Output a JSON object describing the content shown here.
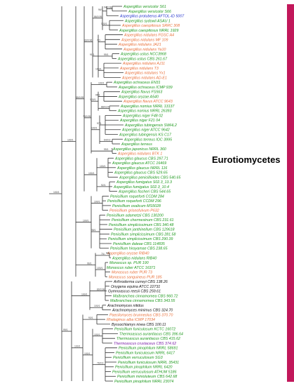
{
  "clade_label": "Eurotiomycetes",
  "colors": {
    "green": "#1f9a1f",
    "orange": "#e8703a",
    "blue": "#2233cc",
    "black": "#111111",
    "purple": "#7a1fa8",
    "bar": "#c2185b",
    "branch": "#333333"
  },
  "taxa": [
    {
      "label": "Aspergillus versicolor S61",
      "color": "green"
    },
    {
      "label": "Aspergillus versicolor S66",
      "color": "green"
    },
    {
      "label": "Aspergillus protuberus AFTOL-ID 5007",
      "color": "blue"
    },
    {
      "label": "Aspergillus sydowii ASAU 1",
      "color": "green"
    },
    {
      "label": "Aspergillus caespitosus SRRC 308",
      "color": "orange"
    },
    {
      "label": "Aspergillus caespitosus NRRL 1929",
      "color": "green"
    },
    {
      "label": "Aspergillus nidulans FGSC A4",
      "color": "orange"
    },
    {
      "label": "Aspergillus nidulans MF 109",
      "color": "orange"
    },
    {
      "label": "Aspergillus nidulans JA21",
      "color": "orange"
    },
    {
      "label": "Aspergillus nidulans Ya10",
      "color": "orange"
    },
    {
      "label": "Aspergillus ustus NCC3968",
      "color": "green"
    },
    {
      "label": "Aspergillus ustus CBS 261.67",
      "color": "green"
    },
    {
      "label": "Aspergillus nidulans AJ11",
      "color": "orange"
    },
    {
      "label": "Aspergillus nidulans T3",
      "color": "orange"
    },
    {
      "label": "Aspergillus nidulans Yx1",
      "color": "orange"
    },
    {
      "label": "Aspergillus nidulans AD-E1",
      "color": "orange"
    },
    {
      "label": "Aspergillus ochraceus EN31",
      "color": "green"
    },
    {
      "label": "Aspergillus ochraceus ICMP 939",
      "color": "green"
    },
    {
      "label": "Aspergillus flavus FS563",
      "color": "green"
    },
    {
      "label": "Aspergillus oryzae A540",
      "color": "green"
    },
    {
      "label": "Aspergillus flavus ATCC 9643",
      "color": "orange"
    },
    {
      "label": "Aspergillus nomius NRRL 13137",
      "color": "green"
    },
    {
      "label": "Aspergillus nomius NRRL 26393",
      "color": "green"
    },
    {
      "label": "Aspergillus niger F48 02",
      "color": "green"
    },
    {
      "label": "Aspergillus niger F21 04",
      "color": "green"
    },
    {
      "label": "Aspergillus tubingensis SWHL2",
      "color": "green"
    },
    {
      "label": "Aspergillus niger ATCC 9642",
      "color": "green"
    },
    {
      "label": "Aspergillus tubingensis KS C17",
      "color": "green"
    },
    {
      "label": "Aspergillus terreus IOC 3995",
      "color": "green"
    },
    {
      "label": "Aspergillus terreus",
      "color": "green"
    },
    {
      "label": "Aspergillus japonicus NRRL 360",
      "color": "green"
    },
    {
      "label": "Aspergillus nidulans BTK 1",
      "color": "orange"
    },
    {
      "label": "Aspergillus glaucus CBS 297.71",
      "color": "green"
    },
    {
      "label": "Aspergillus glaucus ATCC 16469",
      "color": "green"
    },
    {
      "label": "Aspergillus glaucus NRRL 116",
      "color": "green"
    },
    {
      "label": "Aspergillus glaucus CBS 529.65",
      "color": "green"
    },
    {
      "label": "Aspergillus penicillioides CBS 540.65",
      "color": "green"
    },
    {
      "label": "Aspergillus fumigatus S02.3_13.3",
      "color": "green"
    },
    {
      "label": "Aspergillus fumigatus S02.3_10.4",
      "color": "green"
    },
    {
      "label": "Aspergillus fischeri CBS 544.65",
      "color": "green"
    },
    {
      "label": "Penicillium roqueforti CCDM 284",
      "color": "green"
    },
    {
      "label": "Penicillium roqueforti CCDM 296",
      "color": "green"
    },
    {
      "label": "Penicillium oxalicum MS5028",
      "color": "green"
    },
    {
      "label": "Penicillium griseofulvum P632",
      "color": "orange"
    },
    {
      "label": "Penicillium adametzii CBS 130200",
      "color": "green"
    },
    {
      "label": "Penicillium chermesinum CBS 231.61",
      "color": "green"
    },
    {
      "label": "Penicillium simplicissimum CBS 340.48",
      "color": "green"
    },
    {
      "label": "Penicillium janthinellum CBS 129618",
      "color": "green"
    },
    {
      "label": "Penicillium simplicissimum CBS 281.58",
      "color": "green"
    },
    {
      "label": "Penicillium simplicissimum CBS 290.39",
      "color": "green"
    },
    {
      "label": "Penicillium daleae CBS 114835",
      "color": "green"
    },
    {
      "label": "Penicillium hirayamae CBS 238.65",
      "color": "green"
    },
    {
      "label": "Aspergillus oryzae RIB40",
      "color": "orange"
    },
    {
      "label": "Aspergillus nidulans RIB40",
      "color": "green"
    },
    {
      "label": "Monascus sp. PUR 190",
      "color": "green"
    },
    {
      "label": "Monascus ruber ATCC 16371",
      "color": "green"
    },
    {
      "label": "Monascus ruber PUR 73",
      "color": "orange"
    },
    {
      "label": "Monascus sanguineus PUR 185",
      "color": "orange"
    },
    {
      "label": "Arthroderma curreyi CBS 138.26",
      "color": "black"
    },
    {
      "label": "Onygena equina ATCC 22731",
      "color": "black"
    },
    {
      "label": "Gymnoascus reesii CBS 259.61",
      "color": "black"
    },
    {
      "label": "Malbranchea cinnamomea CBS 960.72",
      "color": "green"
    },
    {
      "label": "Malbranchea cinnamomea CBS 343.55",
      "color": "green"
    },
    {
      "label": "Arachnomyces nitidus",
      "color": "black"
    },
    {
      "label": "Arachnomyces minimus CBS 324.70",
      "color": "black"
    },
    {
      "label": "Paecilomyces brunneolus CBS 370.70",
      "color": "orange"
    },
    {
      "label": "Rhalagmus alba ICMP 17034",
      "color": "orange"
    },
    {
      "label": "Byssochlamys nivea CBS 100.11",
      "color": "black"
    },
    {
      "label": "Penicillium funiculosum KCTC 16072",
      "color": "green"
    },
    {
      "label": "Thermoascus aurantiacus CBS 396.64",
      "color": "green"
    },
    {
      "label": "Thermoascus aurantiacus CBS 415.62",
      "color": "green"
    },
    {
      "label": "Thermoascus crustaceus CBS 374.62",
      "color": "purple"
    },
    {
      "label": "Penicillium pinophilum NRRL 58691",
      "color": "green"
    },
    {
      "label": "Penicillium funiculosum NRRL 6417",
      "color": "green"
    },
    {
      "label": "Penicillium verruculosum SG3",
      "color": "green"
    },
    {
      "label": "Penicillium funiculosum NRRL 35431",
      "color": "green"
    },
    {
      "label": "Penicillium pinophilum NRRL 6420",
      "color": "green"
    },
    {
      "label": "Penicillium verruculosum ATHUM 5186",
      "color": "green"
    },
    {
      "label": "Penicillium minioluteum CBS 642.68",
      "color": "green"
    },
    {
      "label": "Penicillium pinophilum NRRL 23074",
      "color": "green"
    }
  ],
  "support_values": [
    "94/0.98",
    "96/1",
    "100/1",
    "86/0.99",
    "72/-",
    "99/1",
    "100/1",
    "91/1",
    "83/0.96",
    "100/1",
    "95/1",
    "88/0.97",
    "100/1",
    "97/1",
    "64/0.9",
    "100/1",
    "99/1",
    "78/0.95",
    "100/1",
    "92/1",
    "100/1",
    "85/0.99",
    "100/1",
    "98/1",
    "100/1",
    "70/-",
    "100/1",
    "96/1",
    "100/1",
    "89/0.98",
    "100/1",
    "100/1",
    "93/1",
    "100/1",
    "76/0.9",
    "100/1",
    "100/1",
    "99/1",
    "100/1",
    "82/0.97"
  ]
}
